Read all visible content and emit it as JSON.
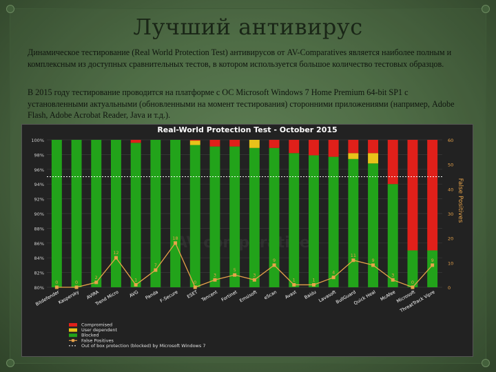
{
  "slide": {
    "title": "Лучший антивирус",
    "paragraph_1": "Динамическое тестирование (Real World Protection Test) антивирусов от AV-Comparatives является наиболее полным и комплексным из доступных сравнительных тестов, в котором используется большое количество тестовых образцов.",
    "paragraph_2": "В 2015 году тестирование проводится на платформе с ОС Microsoft Windows 7 Home Premium 64-bit SP1 с установленными актуальными (обновленными на момент тестирования) сторонними приложениями (например, Adobe Flash, Adobe Acrobat Reader, Java и т.д.)."
  },
  "colors": {
    "compromised": "#e0201a",
    "user_dependent": "#e8c21a",
    "blocked": "#22a31a",
    "false_positives": "#e8a34a",
    "baseline": "#ffffff",
    "background": "#222222"
  },
  "chart_data": {
    "type": "bar",
    "title": "Real-World Protection Test - October 2015",
    "y_left": {
      "ylim": [
        80,
        100
      ],
      "ticks": [
        "80%",
        "82%",
        "84%",
        "86%",
        "88%",
        "90%",
        "92%",
        "94%",
        "96%",
        "98%",
        "100%"
      ]
    },
    "y_right": {
      "label": "False Positives",
      "ylim": [
        0,
        60
      ],
      "ticks": [
        "0",
        "10",
        "20",
        "30",
        "40",
        "50",
        "60"
      ]
    },
    "categories": [
      "Bitdefender",
      "Kaspersky",
      "AVIRA",
      "Trend Micro",
      "AVG",
      "Panda",
      "F-Secure",
      "ESET",
      "Tencent",
      "Fortinet",
      "Emsisoft",
      "eScan",
      "Avast",
      "Baidu",
      "Lavasoft",
      "BullGuard",
      "Quick Heal",
      "McAfee",
      "Microsoft",
      "ThreatTrack Vipre"
    ],
    "series": [
      {
        "name": "Blocked",
        "values": [
          100,
          100,
          100,
          100,
          99.6,
          100,
          100,
          99.3,
          99.1,
          99.1,
          98.9,
          98.9,
          98.2,
          97.9,
          97.7,
          97.4,
          96.8,
          94.0,
          85.0,
          85.0
        ]
      },
      {
        "name": "User dependent",
        "values": [
          0,
          0,
          0,
          0,
          0,
          0,
          0,
          0.6,
          0,
          0,
          1.1,
          0,
          0,
          0,
          0,
          0.8,
          1.4,
          0,
          0,
          0
        ]
      },
      {
        "name": "Compromised",
        "values": [
          0,
          0,
          0,
          0,
          0.4,
          0,
          0,
          0.1,
          0.9,
          0.9,
          0,
          1.1,
          1.8,
          2.1,
          2.3,
          1.8,
          1.8,
          6.0,
          15.0,
          15.0
        ]
      }
    ],
    "false_positives": {
      "name": "False Positives",
      "values": [
        0,
        0,
        2,
        12,
        1,
        7,
        18,
        0,
        3,
        5,
        3,
        9,
        1,
        1,
        4,
        11,
        9,
        3,
        0,
        9
      ],
      "labels": [
        "0",
        "0",
        "2",
        "12",
        "1",
        "7",
        "18",
        "0",
        "3",
        "5",
        "3",
        "9",
        "1",
        "1",
        "4",
        "11",
        "9",
        "3",
        "0",
        "9"
      ]
    },
    "baseline": {
      "name": "Out of box protection (blocked) by Microsoft Windows 7",
      "value": 95
    },
    "legend": [
      "Compromised",
      "User dependent",
      "Blocked",
      "False Positives",
      "Out of box protection (blocked) by Microsoft Windows 7"
    ],
    "watermark": "AV comparatives",
    "legend_position": "bottom-left"
  }
}
